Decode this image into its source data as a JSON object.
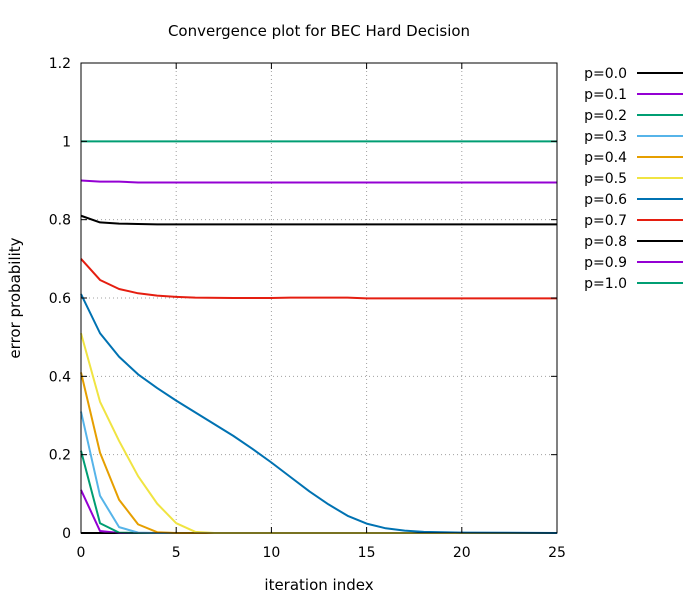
{
  "chart_data": {
    "type": "line",
    "title": "Convergence plot for BEC Hard Decision",
    "xlabel": "iteration index",
    "ylabel": "error probability",
    "xlim": [
      0,
      25
    ],
    "ylim": [
      0,
      1.2
    ],
    "xticks": [
      0,
      5,
      10,
      15,
      20,
      25
    ],
    "yticks": [
      0,
      0.2,
      0.4,
      0.6,
      0.8,
      1,
      1.2
    ],
    "ytick_labels": [
      "0",
      "0.2",
      "0.4",
      "0.6",
      "0.8",
      "1",
      "1.2"
    ],
    "grid": true,
    "legend_position": "outside-right",
    "series": [
      {
        "name": "p=0.0",
        "color": "#000000",
        "points": [
          [
            0,
            0
          ],
          [
            25,
            0
          ]
        ]
      },
      {
        "name": "p=0.1",
        "color": "#9400d3",
        "points": [
          [
            0,
            0.11
          ],
          [
            1,
            0.005
          ],
          [
            2,
            0
          ],
          [
            25,
            0
          ]
        ]
      },
      {
        "name": "p=0.2",
        "color": "#009e73",
        "points": [
          [
            0,
            0.21
          ],
          [
            1,
            0.025
          ],
          [
            2,
            0.001
          ],
          [
            3,
            0
          ],
          [
            25,
            0
          ]
        ]
      },
      {
        "name": "p=0.3",
        "color": "#56b4e9",
        "points": [
          [
            0,
            0.31
          ],
          [
            1,
            0.095
          ],
          [
            2,
            0.015
          ],
          [
            3,
            0.001
          ],
          [
            4,
            0
          ],
          [
            25,
            0
          ]
        ]
      },
      {
        "name": "p=0.4",
        "color": "#e69f00",
        "points": [
          [
            0,
            0.41
          ],
          [
            1,
            0.205
          ],
          [
            2,
            0.085
          ],
          [
            3,
            0.022
          ],
          [
            4,
            0.002
          ],
          [
            5,
            0
          ],
          [
            25,
            0
          ]
        ]
      },
      {
        "name": "p=0.5",
        "color": "#f0e442",
        "points": [
          [
            0,
            0.51
          ],
          [
            1,
            0.335
          ],
          [
            2,
            0.235
          ],
          [
            3,
            0.145
          ],
          [
            4,
            0.075
          ],
          [
            5,
            0.025
          ],
          [
            6,
            0.003
          ],
          [
            7,
            0
          ],
          [
            25,
            0
          ]
        ]
      },
      {
        "name": "p=0.6",
        "color": "#0072b2",
        "points": [
          [
            0,
            0.61
          ],
          [
            1,
            0.51
          ],
          [
            2,
            0.45
          ],
          [
            3,
            0.405
          ],
          [
            4,
            0.37
          ],
          [
            5,
            0.338
          ],
          [
            6,
            0.308
          ],
          [
            7,
            0.278
          ],
          [
            8,
            0.248
          ],
          [
            9,
            0.215
          ],
          [
            10,
            0.18
          ],
          [
            11,
            0.143
          ],
          [
            12,
            0.106
          ],
          [
            13,
            0.073
          ],
          [
            14,
            0.044
          ],
          [
            15,
            0.024
          ],
          [
            16,
            0.012
          ],
          [
            17,
            0.006
          ],
          [
            18,
            0.003
          ],
          [
            19,
            0.002
          ],
          [
            20,
            0.001
          ],
          [
            25,
            0
          ]
        ]
      },
      {
        "name": "p=0.7",
        "color": "#e51e10",
        "points": [
          [
            0,
            0.7
          ],
          [
            1,
            0.646
          ],
          [
            2,
            0.623
          ],
          [
            3,
            0.612
          ],
          [
            4,
            0.606
          ],
          [
            5,
            0.603
          ],
          [
            6,
            0.601
          ],
          [
            8,
            0.6
          ],
          [
            10,
            0.6
          ],
          [
            11,
            0.601
          ],
          [
            14,
            0.601
          ],
          [
            15,
            0.599
          ],
          [
            25,
            0.599
          ]
        ]
      },
      {
        "name": "p=0.8",
        "color": "#000000",
        "points": [
          [
            0,
            0.81
          ],
          [
            1,
            0.793
          ],
          [
            2,
            0.79
          ],
          [
            3,
            0.789
          ],
          [
            4,
            0.788
          ],
          [
            25,
            0.788
          ]
        ]
      },
      {
        "name": "p=0.9",
        "color": "#9400d3",
        "points": [
          [
            0,
            0.9
          ],
          [
            1,
            0.897
          ],
          [
            2,
            0.897
          ],
          [
            3,
            0.895
          ],
          [
            25,
            0.895
          ]
        ]
      },
      {
        "name": "p=1.0",
        "color": "#009e73",
        "points": [
          [
            0,
            1
          ],
          [
            25,
            1
          ]
        ]
      }
    ]
  }
}
